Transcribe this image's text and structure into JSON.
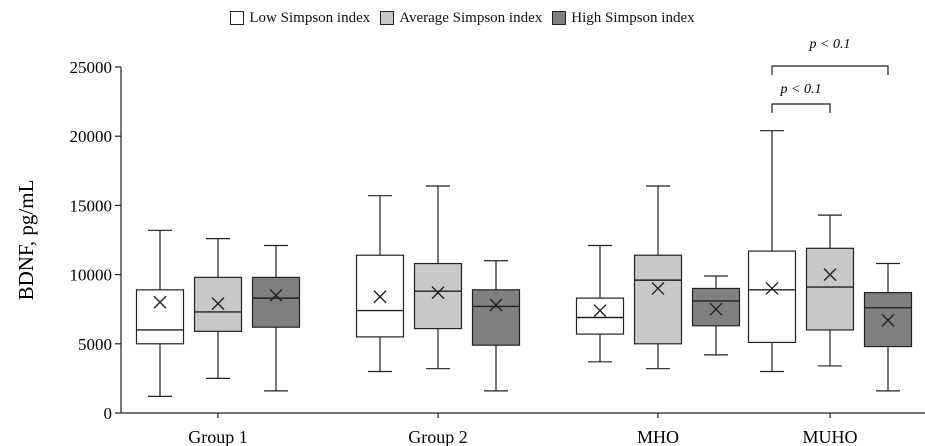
{
  "chart_data": {
    "type": "box",
    "ylabel": "BDNF, pg/mL",
    "ylim": [
      0,
      25000
    ],
    "yticks": [
      0,
      5000,
      10000,
      15000,
      20000,
      25000
    ],
    "grid": false,
    "legend_position": "top",
    "categories": [
      "Group 1",
      "Group 2",
      "MHO",
      "MUHO"
    ],
    "series": [
      {
        "name": "Low Simpson index",
        "color": "#ffffff",
        "boxes": [
          {
            "min": 1200,
            "q1": 5000,
            "median": 6000,
            "q3": 8900,
            "max": 13200,
            "mean": 8000
          },
          {
            "min": 3000,
            "q1": 5500,
            "median": 7400,
            "q3": 11400,
            "max": 15700,
            "mean": 8400
          },
          {
            "min": 3700,
            "q1": 5700,
            "median": 6900,
            "q3": 8300,
            "max": 12100,
            "mean": 7400
          },
          {
            "min": 3000,
            "q1": 5100,
            "median": 8900,
            "q3": 11700,
            "max": 20400,
            "mean": 9000
          }
        ]
      },
      {
        "name": "Average Simpson index",
        "color": "#c8c8ca",
        "boxes": [
          {
            "min": 2500,
            "q1": 5900,
            "median": 7300,
            "q3": 9800,
            "max": 12600,
            "mean": 7900
          },
          {
            "min": 3200,
            "q1": 6100,
            "median": 8800,
            "q3": 10800,
            "max": 16400,
            "mean": 8700
          },
          {
            "min": 3200,
            "q1": 5000,
            "median": 9600,
            "q3": 11400,
            "max": 16400,
            "mean": 9000
          },
          {
            "min": 3400,
            "q1": 6000,
            "median": 9100,
            "q3": 11900,
            "max": 14300,
            "mean": 10000
          }
        ]
      },
      {
        "name": "High Simpson index",
        "color": "#808083",
        "boxes": [
          {
            "min": 1600,
            "q1": 6200,
            "median": 8300,
            "q3": 9800,
            "max": 12100,
            "mean": 8500
          },
          {
            "min": 1600,
            "q1": 4900,
            "median": 7700,
            "q3": 8900,
            "max": 11000,
            "mean": 7800
          },
          {
            "min": 4200,
            "q1": 6300,
            "median": 8100,
            "q3": 9000,
            "max": 9900,
            "mean": 7500
          },
          {
            "min": 1600,
            "q1": 4800,
            "median": 7600,
            "q3": 8700,
            "max": 10800,
            "mean": 6700
          }
        ]
      }
    ],
    "annotations": [
      {
        "category": "MUHO",
        "from_series": 0,
        "to_series": 1,
        "label": "p < 0.1"
      },
      {
        "category": "MUHO",
        "from_series": 0,
        "to_series": 2,
        "label": "p < 0.1"
      }
    ]
  }
}
